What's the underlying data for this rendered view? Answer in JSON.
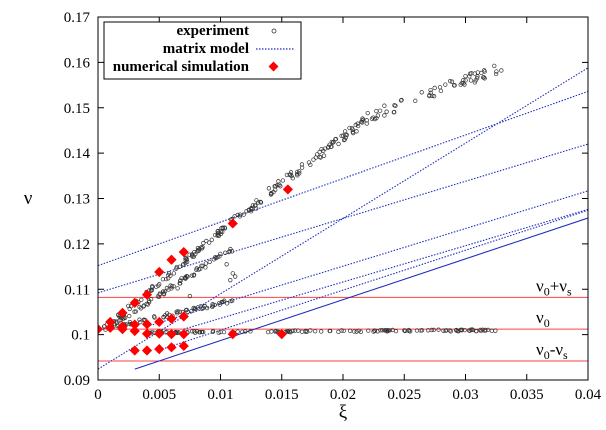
{
  "chart_data": {
    "type": "scatter",
    "xlabel": "ξ",
    "ylabel": "ν",
    "xlim": [
      0,
      0.04
    ],
    "ylim": [
      0.09,
      0.17
    ],
    "xticks": [
      "0",
      "0.005",
      "0.01",
      "0.015",
      "0.02",
      "0.025",
      "0.03",
      "0.035",
      "0.04"
    ],
    "yticks": [
      "0.09",
      "0.1",
      "0.11",
      "0.12",
      "0.13",
      "0.14",
      "0.15",
      "0.16",
      "0.17"
    ],
    "legend_position": "top-left",
    "colors": {
      "experiment": "#333333",
      "matrix": "#1f2fbf",
      "simulation": "#ff0000",
      "reference": "#ff4040"
    },
    "legend": [
      {
        "label": "experiment",
        "marker": "open-circle"
      },
      {
        "label": "matrix model",
        "marker": "dotted-line"
      },
      {
        "label": "numerical simulation",
        "marker": "red-diamond"
      }
    ],
    "horizontal_lines": [
      {
        "y": 0.1082,
        "label_parts": [
          "ν",
          "0",
          "+ν",
          "s"
        ]
      },
      {
        "y": 0.1012,
        "label_parts": [
          "ν",
          "0",
          "",
          ""
        ]
      },
      {
        "y": 0.0942,
        "label_parts": [
          "ν",
          "0",
          "-ν",
          "s"
        ]
      }
    ],
    "matrix_model_lines": [
      {
        "x0": 0,
        "y0": 0.1152,
        "slope": 0.96,
        "style": "dotted"
      },
      {
        "x0": 0,
        "y0": 0.1092,
        "slope": 0.82,
        "style": "dotted"
      },
      {
        "x0": 0.004,
        "y0": 0.1018,
        "slope": 0.83,
        "style": "dotted"
      },
      {
        "x0": 0.007,
        "y0": 0.1012,
        "slope": 0.8,
        "style": "dotted"
      },
      {
        "x0": 0.005,
        "y0": 0.0966,
        "slope": 0.88,
        "style": "dotted"
      },
      {
        "x0": 0,
        "y0": 0.0924,
        "slope": 1.66,
        "style": "dotted"
      },
      {
        "x0": 0.003,
        "y0": 0.0924,
        "slope": 0.9,
        "style": "solid"
      }
    ],
    "simulation_points": [
      [
        0,
        0.1012
      ],
      [
        0.001,
        0.1028
      ],
      [
        0.002,
        0.1048
      ],
      [
        0.003,
        0.107
      ],
      [
        0.004,
        0.1088
      ],
      [
        0.005,
        0.1138
      ],
      [
        0.006,
        0.1165
      ],
      [
        0.007,
        0.1182
      ],
      [
        0.011,
        0.1245
      ],
      [
        0.0155,
        0.132
      ],
      [
        0.001,
        0.1015
      ],
      [
        0.002,
        0.1018
      ],
      [
        0.003,
        0.1022
      ],
      [
        0.004,
        0.1023
      ],
      [
        0.005,
        0.1028
      ],
      [
        0.006,
        0.1035
      ],
      [
        0.007,
        0.104
      ],
      [
        0.002,
        0.1012
      ],
      [
        0.003,
        0.1008
      ],
      [
        0.004,
        0.1002
      ],
      [
        0.005,
        0.1002
      ],
      [
        0.006,
        0.1001
      ],
      [
        0.007,
        0.1001
      ],
      [
        0.011,
        0.1001
      ],
      [
        0.015,
        0.1001
      ],
      [
        0.003,
        0.0965
      ],
      [
        0.004,
        0.0965
      ],
      [
        0.005,
        0.0968
      ],
      [
        0.006,
        0.0972
      ],
      [
        0.007,
        0.0975
      ]
    ],
    "experiment_segments": [
      {
        "x": [
          0.0005,
          0.011
        ],
        "y": [
          0.1012,
          0.125
        ],
        "n": 90,
        "noise": 0.0007
      },
      {
        "x": [
          0.011,
          0.013
        ],
        "y": [
          0.1255,
          0.1285
        ],
        "n": 14,
        "noise": 0.0006
      },
      {
        "x": [
          0.0125,
          0.022
        ],
        "y": [
          0.1285,
          0.1475
        ],
        "n": 80,
        "noise": 0.001
      },
      {
        "x": [
          0.022,
          0.033
        ],
        "y": [
          0.148,
          0.159
        ],
        "n": 60,
        "noise": 0.0012
      },
      {
        "x": [
          0.001,
          0.011
        ],
        "y": [
          0.102,
          0.119
        ],
        "n": 70,
        "noise": 0.0006
      },
      {
        "x": [
          0.001,
          0.011
        ],
        "y": [
          0.1015,
          0.1075
        ],
        "n": 60,
        "noise": 0.0004
      },
      {
        "x": [
          0.004,
          0.033
        ],
        "y": [
          0.1005,
          0.101
        ],
        "n": 140,
        "noise": 0.0002
      }
    ],
    "experiment_outliers": [
      [
        0.0105,
        0.1155
      ],
      [
        0.0108,
        0.112
      ],
      [
        0.011,
        0.1135
      ],
      [
        0.0112,
        0.1128
      ],
      [
        0.0062,
        0.1135
      ],
      [
        0.0065,
        0.1102
      ],
      [
        0.0075,
        0.1085
      ],
      [
        0.0035,
        0.1058
      ]
    ]
  }
}
